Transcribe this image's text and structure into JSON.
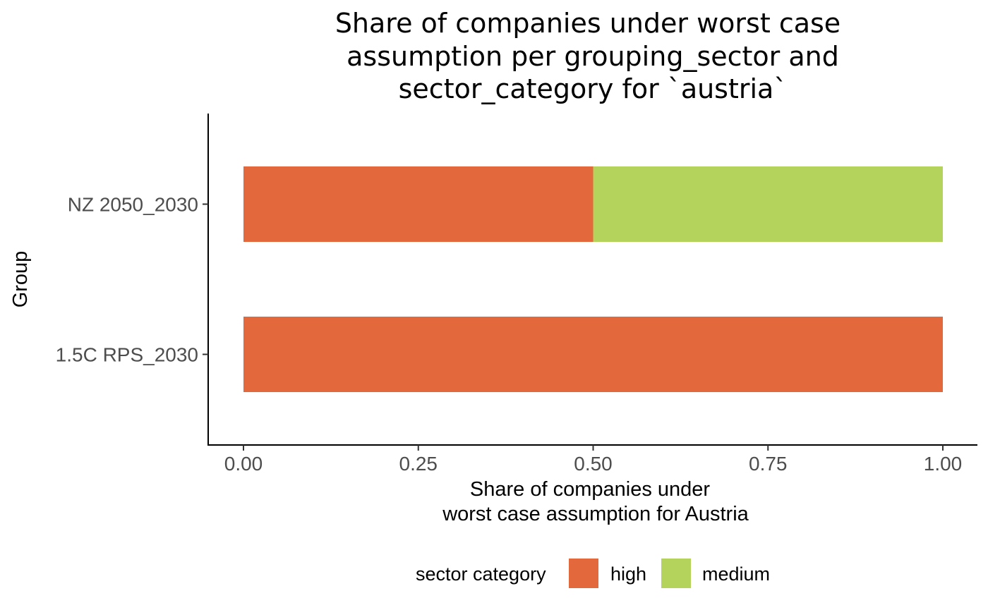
{
  "chart_data": {
    "type": "bar",
    "orientation": "horizontal",
    "stacked": true,
    "title_lines": [
      "Share of companies under worst case",
      "assumption per grouping_sector and",
      "sector_category for `austria`"
    ],
    "xlabel_lines": [
      "Share of companies under",
      "worst case assumption for Austria"
    ],
    "ylabel": "Group",
    "categories": [
      "NZ 2050_2030",
      "1.5C RPS_2030"
    ],
    "series": [
      {
        "name": "high",
        "color": "#E3693C",
        "values": [
          0.5,
          1.0
        ]
      },
      {
        "name": "medium",
        "color": "#B3D35D",
        "values": [
          0.5,
          0.0
        ]
      }
    ],
    "x_ticks": [
      "0.00",
      "0.25",
      "0.50",
      "0.75",
      "1.00"
    ],
    "xlim": [
      0,
      1
    ],
    "grid": false,
    "legend": {
      "title": "sector category",
      "position": "bottom",
      "items": [
        "high",
        "medium"
      ]
    }
  }
}
